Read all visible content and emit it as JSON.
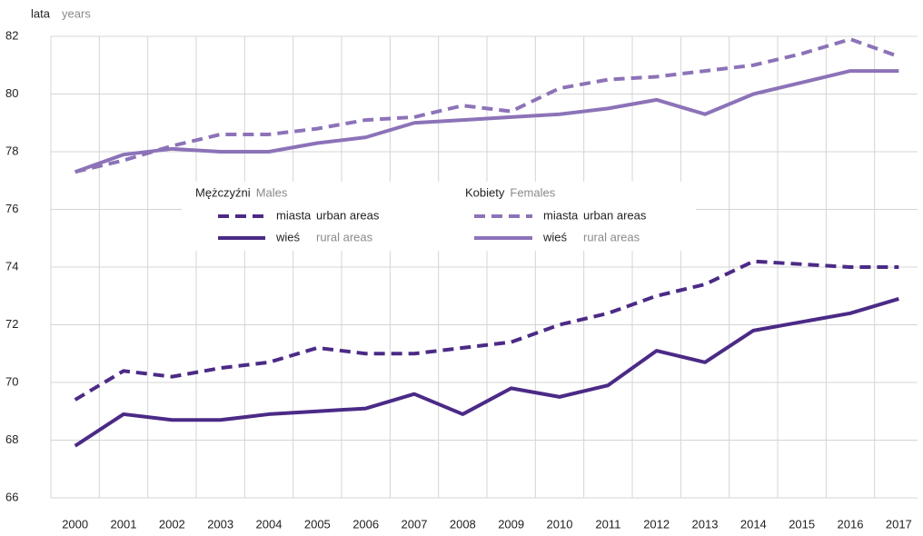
{
  "chart_data": {
    "type": "line",
    "ylabel": "lata",
    "ylabel_en": "years",
    "categories": [
      "2000",
      "2001",
      "2002",
      "2003",
      "2004",
      "2005",
      "2006",
      "2007",
      "2008",
      "2009",
      "2010",
      "2011",
      "2012",
      "2013",
      "2014",
      "2015",
      "2016",
      "2017"
    ],
    "ylim": [
      66,
      82
    ],
    "yticks": [
      66,
      68,
      70,
      72,
      74,
      76,
      78,
      80,
      82
    ],
    "grid": true,
    "legend_groups": [
      {
        "title": "Mężczyźni",
        "subtitle": "Males"
      },
      {
        "title": "Kobiety",
        "subtitle": "Females"
      }
    ],
    "series": [
      {
        "name": "miasta",
        "name_en": "urban areas",
        "group": 0,
        "dashed": true,
        "color": "#4b2a86",
        "values": [
          69.4,
          70.4,
          70.2,
          70.5,
          70.7,
          71.2,
          71.0,
          71.0,
          71.2,
          71.4,
          72.0,
          72.4,
          73.0,
          73.4,
          74.2,
          74.1,
          74.0,
          74.0
        ]
      },
      {
        "name": "wieś",
        "name_en": "rural areas",
        "group": 0,
        "dashed": false,
        "color": "#4b2a86",
        "values": [
          67.8,
          68.9,
          68.7,
          68.7,
          68.9,
          69.0,
          69.1,
          69.6,
          68.9,
          69.8,
          69.5,
          69.9,
          71.1,
          70.7,
          71.8,
          72.1,
          72.4,
          72.9
        ]
      },
      {
        "name": "miasta",
        "name_en": "urban areas",
        "group": 1,
        "dashed": true,
        "color": "#8c73b8",
        "values": [
          77.3,
          77.7,
          78.2,
          78.6,
          78.6,
          78.8,
          79.1,
          79.2,
          79.6,
          79.4,
          80.2,
          80.5,
          80.6,
          80.8,
          81.0,
          81.4,
          81.9,
          81.3
        ]
      },
      {
        "name": "wieś",
        "name_en": "rural areas",
        "group": 1,
        "dashed": false,
        "color": "#8c73b8",
        "values": [
          77.3,
          77.9,
          78.1,
          78.0,
          78.0,
          78.3,
          78.5,
          79.0,
          79.1,
          79.2,
          79.3,
          79.5,
          79.8,
          79.3,
          80.0,
          80.4,
          80.8,
          80.8
        ]
      }
    ]
  }
}
